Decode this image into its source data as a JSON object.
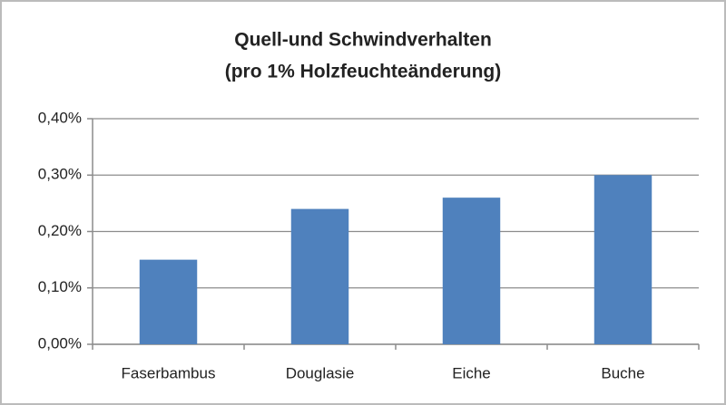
{
  "chart_data": {
    "type": "bar",
    "title": "Quell-und Schwindverhalten",
    "subtitle": "(pro 1% Holzfeuchteänderung)",
    "categories": [
      "Faserbambus",
      "Douglasie",
      "Eiche",
      "Buche"
    ],
    "values": [
      0.15,
      0.24,
      0.26,
      0.3
    ],
    "color": "#4f81bd",
    "ylim": [
      0,
      0.4
    ],
    "yticks": [
      {
        "value": 0,
        "label": "0,00%"
      },
      {
        "value": 0.1,
        "label": "0,10%"
      },
      {
        "value": 0.2,
        "label": "0,20%"
      },
      {
        "value": 0.3,
        "label": "0,30%"
      },
      {
        "value": 0.4,
        "label": "0,40%"
      }
    ],
    "grid": true
  }
}
